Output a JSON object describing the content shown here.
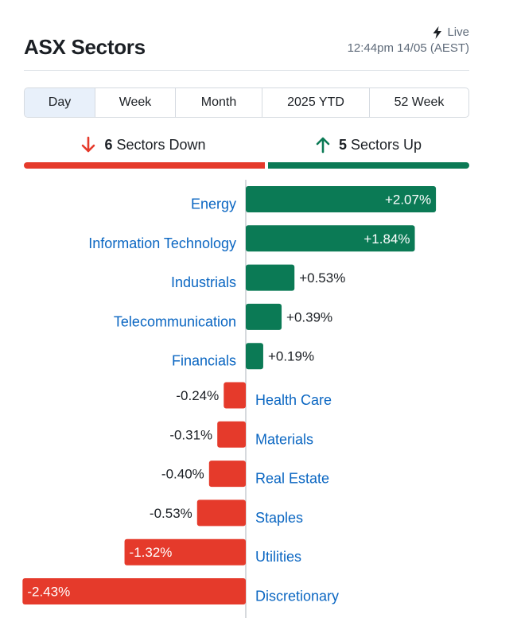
{
  "header": {
    "title": "ASX Sectors",
    "live_label": "Live",
    "timestamp": "12:44pm 14/05 (AEST)"
  },
  "tabs": [
    {
      "label": "Day",
      "active": true
    },
    {
      "label": "Week",
      "active": false
    },
    {
      "label": "Month",
      "active": false
    },
    {
      "label": "2025 YTD",
      "active": false
    },
    {
      "label": "52 Week",
      "active": false
    }
  ],
  "summary": {
    "down_count": "6",
    "down_label": "Sectors Down",
    "up_count": "5",
    "up_label": "Sectors Up"
  },
  "colors": {
    "up": "#0b7a55",
    "down": "#e53a2b",
    "label": "#0a66c2",
    "text": "#1b1f24"
  },
  "chart_data": {
    "type": "bar",
    "orientation": "horizontal",
    "categories": [
      "Energy",
      "Information Technology",
      "Industrials",
      "Telecommunication",
      "Financials",
      "Health Care",
      "Materials",
      "Real Estate",
      "Staples",
      "Utilities",
      "Discretionary"
    ],
    "values": [
      2.07,
      1.84,
      0.53,
      0.39,
      0.19,
      -0.24,
      -0.31,
      -0.4,
      -0.53,
      -1.32,
      -2.43
    ],
    "value_labels": [
      "+2.07%",
      "+1.84%",
      "+0.53%",
      "+0.39%",
      "+0.19%",
      "-0.24%",
      "-0.31%",
      "-0.40%",
      "-0.53%",
      "-1.32%",
      "-2.43%"
    ],
    "title": "",
    "xlabel": "",
    "ylabel": ""
  }
}
